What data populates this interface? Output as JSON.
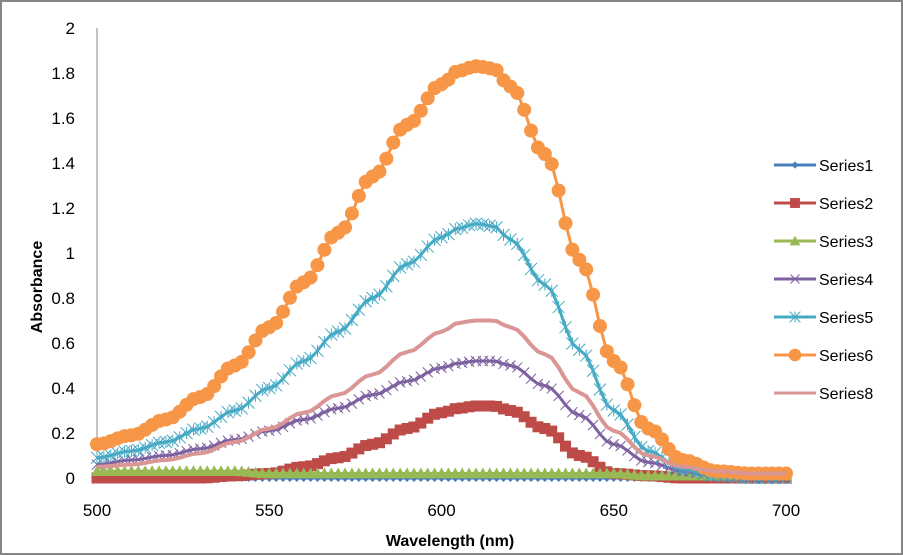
{
  "chart_data": {
    "type": "line",
    "title": "",
    "xlabel": "Wavelength (nm)",
    "ylabel": "Absorbance",
    "xlim": [
      500,
      700
    ],
    "ylim": [
      0,
      2
    ],
    "x_ticks": [
      "500",
      "550",
      "600",
      "650",
      "700"
    ],
    "y_ticks": [
      "0",
      "0.2",
      "0.4",
      "0.6",
      "0.8",
      "1",
      "1.2",
      "1.4",
      "1.6",
      "1.8",
      "2"
    ],
    "grid": false,
    "legend_position": "right",
    "x": [
      500,
      510,
      520,
      530,
      540,
      550,
      560,
      570,
      580,
      590,
      600,
      605,
      610,
      615,
      620,
      630,
      640,
      650,
      660,
      670,
      680,
      690,
      700
    ],
    "series": [
      {
        "name": "Series1",
        "color": "#4A7EBB",
        "marker": "diamond",
        "values": [
          0.01,
          0.01,
          0.0,
          0.0,
          0.0,
          0.0,
          0.0,
          0.0,
          0.0,
          0.0,
          0.0,
          0.0,
          0.0,
          0.0,
          0.0,
          0.0,
          0.0,
          0.0,
          0.0,
          0.0,
          0.0,
          0.0,
          0.0
        ]
      },
      {
        "name": "Series2",
        "color": "#BE4B48",
        "marker": "square",
        "values": [
          0.0,
          0.0,
          0.0,
          0.0,
          0.01,
          0.02,
          0.05,
          0.09,
          0.15,
          0.22,
          0.29,
          0.31,
          0.32,
          0.32,
          0.3,
          0.22,
          0.1,
          0.02,
          0.01,
          0.0,
          0.0,
          0.0,
          0.0
        ]
      },
      {
        "name": "Series3",
        "color": "#98B954",
        "marker": "triangle",
        "values": [
          0.03,
          0.03,
          0.03,
          0.03,
          0.03,
          0.02,
          0.02,
          0.02,
          0.02,
          0.02,
          0.02,
          0.02,
          0.02,
          0.02,
          0.02,
          0.02,
          0.02,
          0.02,
          0.01,
          0.01,
          0.01,
          0.01,
          0.01
        ]
      },
      {
        "name": "Series4",
        "color": "#7D60A0",
        "marker": "x",
        "values": [
          0.06,
          0.08,
          0.1,
          0.13,
          0.17,
          0.21,
          0.26,
          0.31,
          0.37,
          0.43,
          0.49,
          0.51,
          0.52,
          0.52,
          0.5,
          0.41,
          0.28,
          0.15,
          0.07,
          0.03,
          0.01,
          0.01,
          0.0
        ]
      },
      {
        "name": "Series5",
        "color": "#46AAC5",
        "marker": "star",
        "values": [
          0.09,
          0.12,
          0.16,
          0.22,
          0.3,
          0.4,
          0.52,
          0.65,
          0.8,
          0.95,
          1.07,
          1.11,
          1.13,
          1.12,
          1.06,
          0.86,
          0.57,
          0.3,
          0.12,
          0.04,
          0.01,
          0.0,
          0.0
        ]
      },
      {
        "name": "Series6",
        "color": "#F79646",
        "marker": "circle",
        "values": [
          0.15,
          0.19,
          0.26,
          0.36,
          0.5,
          0.67,
          0.87,
          1.09,
          1.34,
          1.57,
          1.75,
          1.81,
          1.83,
          1.82,
          1.74,
          1.44,
          0.97,
          0.52,
          0.22,
          0.08,
          0.03,
          0.02,
          0.02
        ]
      },
      {
        "name": "Series8",
        "color": "#DA9694",
        "marker": "none",
        "values": [
          0.05,
          0.06,
          0.08,
          0.11,
          0.16,
          0.22,
          0.29,
          0.37,
          0.46,
          0.56,
          0.65,
          0.69,
          0.7,
          0.7,
          0.67,
          0.55,
          0.38,
          0.21,
          0.1,
          0.05,
          0.03,
          0.02,
          0.02
        ]
      }
    ]
  }
}
